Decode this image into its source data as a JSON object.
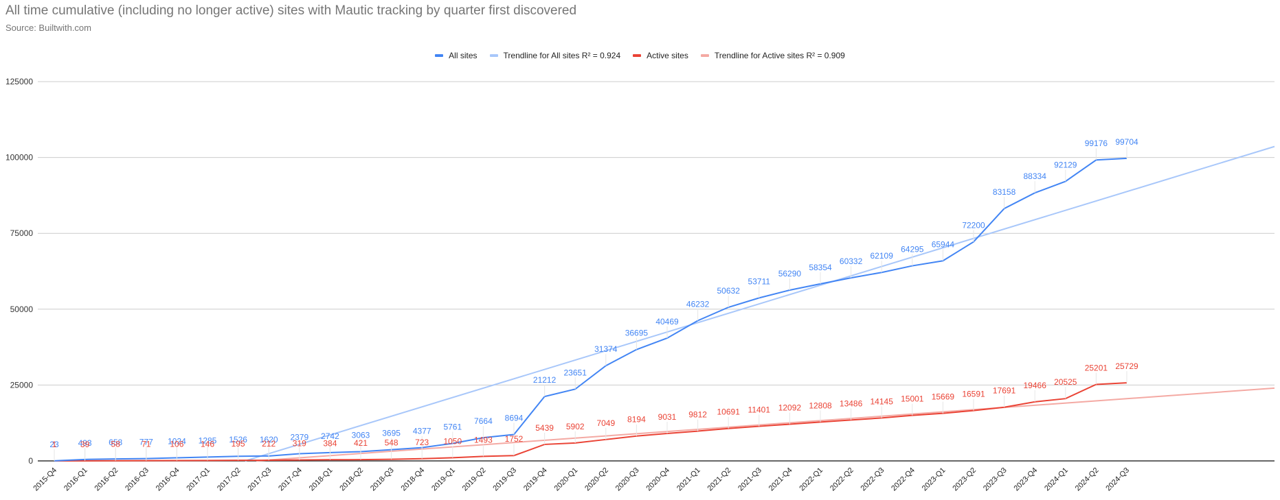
{
  "header": {
    "title": "All time cumulative (including no longer active) sites with Mautic tracking by quarter first discovered",
    "subtitle": "Source: Builtwith.com"
  },
  "legend": [
    {
      "label": "All sites",
      "color": "#4285F4"
    },
    {
      "label": "Trendline for All sites R² = 0.924",
      "color": "#A8C7FA"
    },
    {
      "label": "Active sites",
      "color": "#EA4335"
    },
    {
      "label": "Trendline for Active sites R² = 0.909",
      "color": "#F4A9A3"
    }
  ],
  "colors": {
    "all_sites": "#4285F4",
    "all_trend": "#A8C7FA",
    "active_sites": "#EA4335",
    "active_trend": "#F4A9A3",
    "gridline": "#cccccc",
    "axis": "#333333"
  },
  "chart_data": {
    "type": "line",
    "title": "All time cumulative (including no longer active) sites with Mautic tracking by quarter first discovered",
    "subtitle": "Source: Builtwith.com",
    "xlabel": "",
    "ylabel": "",
    "ylim": [
      0,
      125000
    ],
    "yticks": [
      0,
      25000,
      50000,
      75000,
      100000,
      125000
    ],
    "grid": true,
    "legend_position": "top",
    "categories": [
      "2015-Q4",
      "2016-Q1",
      "2016-Q2",
      "2016-Q3",
      "2016-Q4",
      "2017-Q1",
      "2017-Q2",
      "2017-Q3",
      "2017-Q4",
      "2018-Q1",
      "2018-Q2",
      "2018-Q3",
      "2018-Q4",
      "2019-Q1",
      "2019-Q2",
      "2019-Q3",
      "2019-Q4",
      "2020-Q1",
      "2020-Q2",
      "2020-Q3",
      "2020-Q4",
      "2021-Q1",
      "2021-Q2",
      "2021-Q3",
      "2021-Q4",
      "2022-Q1",
      "2022-Q2",
      "2022-Q3",
      "2022-Q4",
      "2023-Q1",
      "2023-Q2",
      "2023-Q3",
      "2023-Q4",
      "2024-Q1",
      "2024-Q2",
      "2024-Q3"
    ],
    "series": [
      {
        "name": "All sites",
        "values": [
          23,
          493,
          658,
          777,
          1024,
          1285,
          1526,
          1620,
          2379,
          2742,
          3063,
          3695,
          4377,
          5761,
          7664,
          8694,
          21212,
          23651,
          31374,
          36695,
          40469,
          46232,
          50632,
          53711,
          56290,
          58354,
          60332,
          62109,
          64295,
          65944,
          72200,
          83158,
          88334,
          92129,
          99176,
          99704
        ]
      },
      {
        "name": "Active sites",
        "values": [
          1,
          39,
          58,
          71,
          106,
          146,
          195,
          212,
          319,
          384,
          421,
          548,
          723,
          1050,
          1493,
          1752,
          5439,
          5902,
          7049,
          8194,
          9031,
          9812,
          10691,
          11401,
          12092,
          12808,
          13486,
          14145,
          15001,
          15669,
          16591,
          17691,
          19466,
          20525,
          25201,
          25729
        ]
      }
    ],
    "trendlines": [
      {
        "name": "Trendline for All sites",
        "r_squared": 0.924
      },
      {
        "name": "Trendline for Active sites",
        "r_squared": 0.909
      }
    ]
  }
}
